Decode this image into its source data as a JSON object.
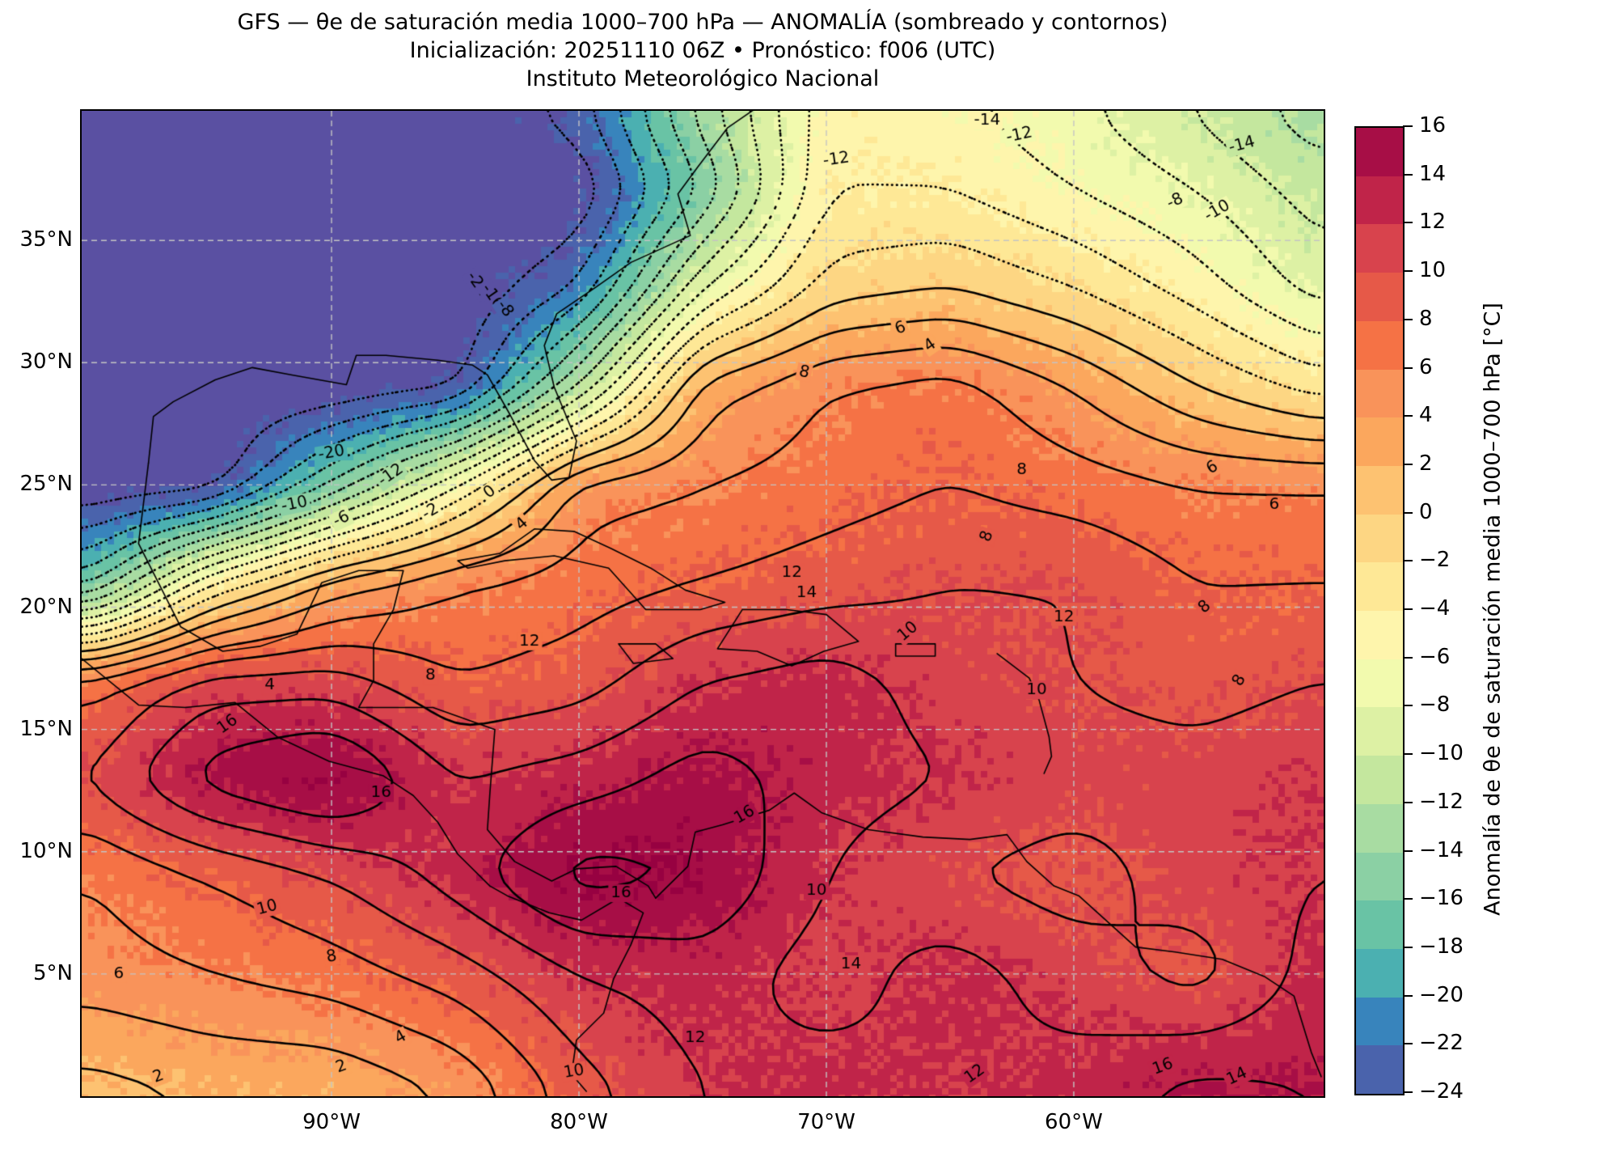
{
  "header": {
    "title_line1": "GFS — θe de saturación media 1000–700 hPa — ANOMALÍA (sombreado y contornos)",
    "title_line2": "Inicialización: 20251110 06Z   •   Pronóstico: f006 (UTC)",
    "title_line3": "Instituto Meteorológico Nacional"
  },
  "chart_data": {
    "type": "heatmap",
    "subtype": "filled-contour-weather-map",
    "projection": "lonlat",
    "lon_range": [
      -100.1,
      -49.9
    ],
    "lat_range": [
      0,
      40.3
    ],
    "x_ticks": [
      {
        "lon": -90,
        "label": "90°W"
      },
      {
        "lon": -80,
        "label": "80°W"
      },
      {
        "lon": -70,
        "label": "70°W"
      },
      {
        "lon": -60,
        "label": "60°W"
      }
    ],
    "y_ticks": [
      {
        "lat": 35,
        "label": "35°N"
      },
      {
        "lat": 30,
        "label": "30°N"
      },
      {
        "lat": 25,
        "label": "25°N"
      },
      {
        "lat": 20,
        "label": "20°N"
      },
      {
        "lat": 15,
        "label": "15°N"
      },
      {
        "lat": 10,
        "label": "10°N"
      },
      {
        "lat": 5,
        "label": "5°N"
      }
    ],
    "levels": {
      "min": -24,
      "max": 16,
      "step": 2,
      "negative_style": "dotted",
      "positive_style": "solid"
    },
    "grid_color": "#c4c4c4",
    "contour_color": "#000000",
    "colorbar": {
      "label": "Anomalía de θe de saturación media 1000–700 hPa [°C]",
      "tick_labels": [
        "16",
        "14",
        "12",
        "10",
        "8",
        "6",
        "4",
        "2",
        "0",
        "−2",
        "−4",
        "−6",
        "−8",
        "−10",
        "−12",
        "−14",
        "−16",
        "−18",
        "−20",
        "−22",
        "−24"
      ],
      "colors_bottom_to_top": [
        "#4A63AC",
        "#3884BC",
        "#4BB0B1",
        "#69C3A5",
        "#8BD0A4",
        "#A8DCA2",
        "#C4E79E",
        "#DDF1A4",
        "#F2FAAE",
        "#FEF5AC",
        "#FEE896",
        "#FDD683",
        "#FDC271",
        "#FBA75D",
        "#F9935A",
        "#F57245",
        "#E65948",
        "#D8434D",
        "#C02449",
        "#A70E46"
      ],
      "under_color": "#5A50A2",
      "over_color": "#970141"
    },
    "grid": {
      "lons": [
        -100,
        -95,
        -90,
        -85,
        -80,
        -75,
        -70,
        -65,
        -60,
        -55,
        -50
      ],
      "lats": [
        41.3,
        37,
        33,
        29,
        25,
        21,
        17,
        13,
        9,
        5,
        0
      ],
      "values": [
        [
          -26,
          -26,
          -26,
          -26,
          -22,
          -12,
          -5,
          -6,
          -8,
          -11,
          -14
        ],
        [
          -26,
          -26,
          -26,
          -26,
          -26,
          -16,
          -4,
          -4,
          -6,
          -8,
          -11
        ],
        [
          -26,
          -26,
          -26,
          -26,
          -22,
          -8,
          -1,
          0,
          -2,
          -5,
          -9
        ],
        [
          -26,
          -26,
          -26,
          -25,
          -12,
          3,
          6,
          7,
          4,
          0,
          -3
        ],
        [
          -26,
          -26,
          -16,
          -6,
          5,
          6,
          7,
          8,
          7,
          6,
          6
        ],
        [
          -18,
          -4,
          3,
          6,
          7,
          8,
          9,
          10,
          10,
          8,
          8
        ],
        [
          7,
          11,
          11,
          8,
          9,
          12,
          13,
          11,
          10,
          9,
          10
        ],
        [
          10,
          15,
          17,
          12,
          13,
          15,
          13,
          12,
          11,
          11,
          12
        ],
        [
          6,
          8,
          10,
          13,
          17,
          16,
          12,
          10,
          9,
          11,
          12
        ],
        [
          5,
          6,
          7,
          9,
          12,
          13,
          11,
          13,
          11,
          9,
          13
        ],
        [
          1,
          2,
          2,
          4,
          9,
          12,
          13,
          12,
          13,
          15,
          14
        ]
      ]
    },
    "contour_labels": [
      {
        "lon": -90.0,
        "lat": 26.3,
        "text": "-20",
        "rot": -10
      },
      {
        "lon": -87.6,
        "lat": 25.4,
        "text": "-12",
        "rot": -35
      },
      {
        "lon": -91.5,
        "lat": 24.2,
        "text": "-10",
        "rot": -12
      },
      {
        "lon": -89.6,
        "lat": 23.6,
        "text": "-6",
        "rot": -25
      },
      {
        "lon": -86.0,
        "lat": 23.9,
        "text": "-2",
        "rot": -30
      },
      {
        "lon": -83.6,
        "lat": 24.7,
        "text": "0",
        "rot": -38
      },
      {
        "lon": -82.3,
        "lat": 23.4,
        "text": "4",
        "rot": -42
      },
      {
        "lon": -84.1,
        "lat": 33.2,
        "text": "-24",
        "rot": 55
      },
      {
        "lon": -83.5,
        "lat": 32.7,
        "text": "-16",
        "rot": 55
      },
      {
        "lon": -83.0,
        "lat": 32.2,
        "text": "-8",
        "rot": 55
      },
      {
        "lon": -69.6,
        "lat": 38.3,
        "text": "-12",
        "rot": -8
      },
      {
        "lon": -63.5,
        "lat": 40.0,
        "text": "-14",
        "rot": 0
      },
      {
        "lon": -62.2,
        "lat": 39.3,
        "text": "-12",
        "rot": -12
      },
      {
        "lon": -53.2,
        "lat": 38.9,
        "text": "-14",
        "rot": -15
      },
      {
        "lon": -55.9,
        "lat": 36.6,
        "text": "-8",
        "rot": -25
      },
      {
        "lon": -54.2,
        "lat": 36.2,
        "text": "-10",
        "rot": -30
      },
      {
        "lon": -70.9,
        "lat": 29.6,
        "text": "8",
        "rot": 12
      },
      {
        "lon": -67.0,
        "lat": 31.4,
        "text": "6",
        "rot": -20
      },
      {
        "lon": -65.8,
        "lat": 30.7,
        "text": "4",
        "rot": -35
      },
      {
        "lon": -62.1,
        "lat": 25.6,
        "text": "8",
        "rot": 0
      },
      {
        "lon": -63.5,
        "lat": 22.9,
        "text": "8",
        "rot": -70
      },
      {
        "lon": -54.4,
        "lat": 25.7,
        "text": "6",
        "rot": -30
      },
      {
        "lon": -51.9,
        "lat": 24.2,
        "text": "6",
        "rot": 0
      },
      {
        "lon": -71.4,
        "lat": 21.4,
        "text": "12",
        "rot": 0
      },
      {
        "lon": -70.8,
        "lat": 20.6,
        "text": "14",
        "rot": 0
      },
      {
        "lon": -82.0,
        "lat": 18.6,
        "text": "12",
        "rot": 0
      },
      {
        "lon": -66.7,
        "lat": 19.0,
        "text": "10",
        "rot": -40
      },
      {
        "lon": -60.4,
        "lat": 19.6,
        "text": "12",
        "rot": 0
      },
      {
        "lon": -54.7,
        "lat": 20.0,
        "text": "8",
        "rot": -40
      },
      {
        "lon": -61.5,
        "lat": 16.6,
        "text": "10",
        "rot": 0
      },
      {
        "lon": -53.3,
        "lat": 17.0,
        "text": "8",
        "rot": -60
      },
      {
        "lon": -94.2,
        "lat": 15.2,
        "text": "16",
        "rot": -35
      },
      {
        "lon": -88.0,
        "lat": 12.4,
        "text": "16",
        "rot": 0
      },
      {
        "lon": -92.5,
        "lat": 16.8,
        "text": "4",
        "rot": 0
      },
      {
        "lon": -86.0,
        "lat": 17.2,
        "text": "8",
        "rot": 0
      },
      {
        "lon": -92.6,
        "lat": 7.7,
        "text": "10",
        "rot": -15
      },
      {
        "lon": -98.6,
        "lat": 5.0,
        "text": "6",
        "rot": 0
      },
      {
        "lon": -90.0,
        "lat": 5.7,
        "text": "8",
        "rot": -10
      },
      {
        "lon": -87.2,
        "lat": 2.4,
        "text": "4",
        "rot": -30
      },
      {
        "lon": -97.0,
        "lat": 0.8,
        "text": "2",
        "rot": -20
      },
      {
        "lon": -89.6,
        "lat": 1.2,
        "text": "2",
        "rot": -20
      },
      {
        "lon": -73.3,
        "lat": 11.5,
        "text": "16",
        "rot": -30
      },
      {
        "lon": -78.3,
        "lat": 8.3,
        "text": "16",
        "rot": 0
      },
      {
        "lon": -70.4,
        "lat": 8.4,
        "text": "10",
        "rot": 0
      },
      {
        "lon": -69.0,
        "lat": 5.4,
        "text": "14",
        "rot": 0
      },
      {
        "lon": -75.3,
        "lat": 2.4,
        "text": "12",
        "rot": 0
      },
      {
        "lon": -80.2,
        "lat": 1.0,
        "text": "10",
        "rot": -10
      },
      {
        "lon": -64.0,
        "lat": 0.9,
        "text": "12",
        "rot": -35
      },
      {
        "lon": -56.4,
        "lat": 1.2,
        "text": "16",
        "rot": -20
      },
      {
        "lon": -53.4,
        "lat": 0.8,
        "text": "14",
        "rot": -25
      }
    ],
    "coastlines": [
      [
        [
          -97.4,
          25.9
        ],
        [
          -97.2,
          27.8
        ],
        [
          -96.4,
          28.4
        ],
        [
          -94.7,
          29.3
        ],
        [
          -93.2,
          29.8
        ],
        [
          -91.6,
          29.5
        ],
        [
          -89.4,
          29.1
        ],
        [
          -89.0,
          30.3
        ],
        [
          -87.8,
          30.3
        ],
        [
          -85.7,
          30.1
        ],
        [
          -84.3,
          29.9
        ],
        [
          -83.7,
          29.5
        ],
        [
          -82.8,
          27.9
        ],
        [
          -81.8,
          26.0
        ],
        [
          -81.1,
          25.2
        ],
        [
          -80.4,
          25.3
        ],
        [
          -80.1,
          26.8
        ],
        [
          -81.0,
          29.0
        ],
        [
          -81.4,
          30.7
        ],
        [
          -80.9,
          32.0
        ],
        [
          -79.3,
          33.1
        ],
        [
          -77.9,
          34.1
        ],
        [
          -75.5,
          35.2
        ],
        [
          -76.0,
          36.9
        ],
        [
          -75.2,
          38.0
        ],
        [
          -74.0,
          39.6
        ],
        [
          -72.0,
          41.0
        ],
        [
          -70.0,
          41.3
        ]
      ],
      [
        [
          -97.4,
          25.9
        ],
        [
          -97.8,
          22.6
        ],
        [
          -96.1,
          19.2
        ],
        [
          -94.4,
          18.2
        ],
        [
          -92.9,
          18.4
        ],
        [
          -91.4,
          18.9
        ],
        [
          -90.4,
          21.0
        ],
        [
          -88.9,
          21.5
        ],
        [
          -87.1,
          21.5
        ],
        [
          -87.5,
          19.9
        ],
        [
          -88.3,
          18.5
        ],
        [
          -88.3,
          17.0
        ],
        [
          -88.9,
          15.9
        ],
        [
          -85.9,
          15.9
        ],
        [
          -83.4,
          15.0
        ],
        [
          -83.6,
          12.4
        ],
        [
          -83.7,
          10.9
        ],
        [
          -82.6,
          9.6
        ],
        [
          -81.1,
          8.8
        ],
        [
          -80.1,
          9.3
        ],
        [
          -78.5,
          9.4
        ],
        [
          -77.2,
          8.6
        ],
        [
          -76.9,
          8.1
        ]
      ],
      [
        [
          -100.1,
          17.9
        ],
        [
          -97.8,
          16.0
        ],
        [
          -95.9,
          15.9
        ],
        [
          -93.9,
          16.1
        ],
        [
          -92.2,
          14.7
        ],
        [
          -90.1,
          13.7
        ],
        [
          -87.9,
          13.1
        ],
        [
          -86.7,
          12.3
        ],
        [
          -85.7,
          11.2
        ],
        [
          -84.9,
          9.9
        ],
        [
          -83.6,
          8.6
        ],
        [
          -82.9,
          8.2
        ],
        [
          -81.2,
          7.5
        ],
        [
          -79.9,
          7.2
        ],
        [
          -78.4,
          8.1
        ],
        [
          -77.4,
          7.5
        ],
        [
          -77.9,
          6.2
        ],
        [
          -78.6,
          4.8
        ],
        [
          -79.0,
          3.4
        ],
        [
          -80.1,
          2.3
        ],
        [
          -80.3,
          0.9
        ],
        [
          -79.7,
          0.2
        ]
      ],
      [
        [
          -76.9,
          8.1
        ],
        [
          -75.6,
          9.4
        ],
        [
          -75.3,
          10.8
        ],
        [
          -74.2,
          11.1
        ],
        [
          -72.3,
          11.7
        ],
        [
          -71.3,
          12.4
        ],
        [
          -70.2,
          11.6
        ],
        [
          -68.3,
          10.9
        ],
        [
          -66.1,
          10.6
        ],
        [
          -64.2,
          10.5
        ],
        [
          -62.7,
          10.7
        ],
        [
          -61.9,
          9.6
        ],
        [
          -60.8,
          8.6
        ],
        [
          -59.8,
          8.2
        ],
        [
          -57.5,
          6.1
        ],
        [
          -55.9,
          5.9
        ],
        [
          -54.0,
          5.6
        ],
        [
          -52.3,
          4.9
        ],
        [
          -51.1,
          4.1
        ],
        [
          -50.4,
          1.8
        ],
        [
          -50.0,
          0.8
        ]
      ],
      [
        [
          -84.9,
          21.9
        ],
        [
          -83.2,
          22.2
        ],
        [
          -81.8,
          23.2
        ],
        [
          -80.2,
          23.1
        ],
        [
          -78.7,
          22.4
        ],
        [
          -77.1,
          21.6
        ],
        [
          -75.7,
          20.7
        ],
        [
          -74.1,
          20.2
        ],
        [
          -75.1,
          19.9
        ],
        [
          -77.3,
          19.9
        ],
        [
          -78.8,
          21.6
        ],
        [
          -81.0,
          22.1
        ],
        [
          -83.0,
          21.9
        ],
        [
          -84.5,
          21.6
        ],
        [
          -84.9,
          21.9
        ]
      ],
      [
        [
          -73.4,
          19.9
        ],
        [
          -71.6,
          19.9
        ],
        [
          -70.0,
          19.7
        ],
        [
          -68.7,
          18.6
        ],
        [
          -70.1,
          18.2
        ],
        [
          -71.4,
          17.6
        ],
        [
          -72.8,
          18.2
        ],
        [
          -74.4,
          18.3
        ],
        [
          -73.4,
          19.9
        ]
      ],
      [
        [
          -78.4,
          18.5
        ],
        [
          -76.9,
          18.5
        ],
        [
          -76.2,
          17.9
        ],
        [
          -77.8,
          17.7
        ],
        [
          -78.4,
          18.5
        ]
      ],
      [
        [
          -67.2,
          18.5
        ],
        [
          -65.6,
          18.5
        ],
        [
          -65.6,
          18.0
        ],
        [
          -67.2,
          18.0
        ],
        [
          -67.2,
          18.5
        ]
      ],
      [
        [
          -63.1,
          18.1
        ],
        [
          -61.8,
          17.1
        ],
        [
          -61.4,
          16.2
        ],
        [
          -61.0,
          14.7
        ],
        [
          -60.9,
          13.9
        ],
        [
          -61.2,
          13.2
        ]
      ]
    ]
  }
}
